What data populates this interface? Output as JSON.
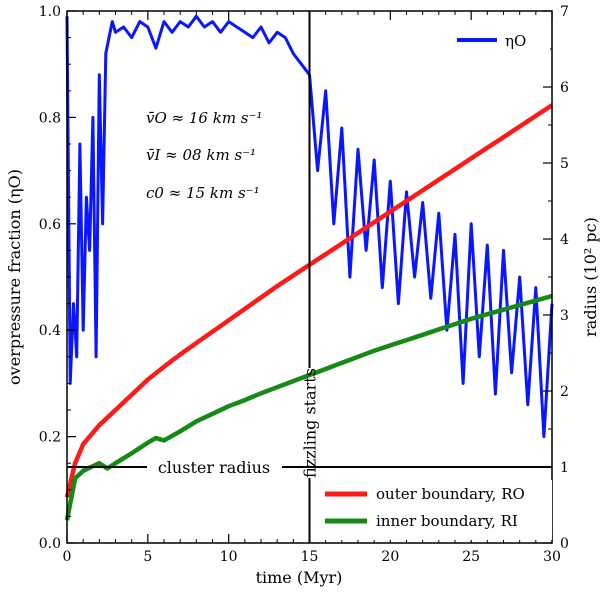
{
  "chart_data": {
    "type": "line",
    "xlabel": "time (Myr)",
    "ylabel_left": "overpressure fraction (ηO)",
    "ylabel_right": "radius (10² pc)",
    "xlim": [
      0,
      30
    ],
    "ylim_left": [
      0,
      1.0
    ],
    "ylim_right": [
      0,
      7
    ],
    "x_ticks": [
      "0",
      "5",
      "10",
      "15",
      "20",
      "25",
      "30"
    ],
    "y_ticks_left": [
      "0.0",
      "0.2",
      "0.4",
      "0.6",
      "0.8",
      "1.0"
    ],
    "y_ticks_right": [
      "0",
      "1",
      "2",
      "3",
      "4",
      "5",
      "6",
      "7"
    ],
    "grid": false,
    "annotations": {
      "v_outer": "v̄O ≈ 16 km s⁻¹",
      "v_inner": "v̄I ≈ 08 km s⁻¹",
      "c0": "c0 ≈ 15 km s⁻¹",
      "cluster_radius": "cluster radius",
      "fizzling": "fizzling starts"
    },
    "reference_lines": {
      "cluster_radius_value": 1.0,
      "fizzling_time": 15
    },
    "legend_top": {
      "position": "top-right",
      "entries": [
        "ηO"
      ]
    },
    "legend_bottom": {
      "position": "bottom-right",
      "entries": [
        "outer boundary, RO",
        "inner boundary, RI"
      ]
    },
    "series": [
      {
        "name": "ηO",
        "axis": "left",
        "color": "#0a16ff",
        "x": [
          0,
          0.2,
          0.4,
          0.6,
          0.8,
          1.0,
          1.2,
          1.4,
          1.6,
          1.8,
          2.0,
          2.2,
          2.4,
          2.6,
          2.8,
          3.0,
          3.5,
          4,
          4.5,
          5,
          5.5,
          6,
          6.5,
          7,
          7.5,
          8,
          8.5,
          9,
          9.5,
          10,
          10.5,
          11,
          11.5,
          12,
          12.5,
          13,
          13.5,
          14,
          14.5,
          15,
          15.5,
          16,
          16.5,
          17,
          17.5,
          18,
          18.5,
          19,
          19.5,
          20,
          20.5,
          21,
          21.5,
          22,
          22.5,
          23,
          23.5,
          24,
          24.5,
          25,
          25.5,
          26,
          26.5,
          27,
          27.5,
          28,
          28.5,
          29,
          29.5,
          30
        ],
        "y": [
          0.99,
          0.3,
          0.45,
          0.35,
          0.75,
          0.4,
          0.65,
          0.55,
          0.8,
          0.35,
          0.88,
          0.6,
          0.92,
          0.95,
          0.98,
          0.96,
          0.97,
          0.95,
          0.98,
          0.97,
          0.93,
          0.98,
          0.96,
          0.98,
          0.97,
          0.99,
          0.97,
          0.98,
          0.96,
          0.98,
          0.97,
          0.96,
          0.95,
          0.97,
          0.94,
          0.96,
          0.95,
          0.92,
          0.9,
          0.88,
          0.7,
          0.85,
          0.6,
          0.78,
          0.5,
          0.74,
          0.55,
          0.72,
          0.48,
          0.68,
          0.45,
          0.66,
          0.5,
          0.64,
          0.46,
          0.62,
          0.4,
          0.58,
          0.3,
          0.6,
          0.35,
          0.56,
          0.28,
          0.55,
          0.32,
          0.5,
          0.26,
          0.48,
          0.2,
          0.45
        ]
      },
      {
        "name": "outer boundary, RO",
        "axis": "right",
        "color": "#ff1a1a",
        "x": [
          0,
          0.5,
          1,
          2,
          3,
          4,
          5,
          6,
          7,
          8,
          9,
          10,
          11,
          12,
          13,
          14,
          15,
          16,
          17,
          18,
          19,
          20,
          21,
          22,
          23,
          24,
          25,
          26,
          27,
          28,
          29,
          30
        ],
        "y": [
          0.6,
          1.05,
          1.3,
          1.55,
          1.75,
          1.95,
          2.15,
          2.32,
          2.48,
          2.63,
          2.78,
          2.93,
          3.08,
          3.23,
          3.38,
          3.52,
          3.66,
          3.8,
          3.94,
          4.08,
          4.22,
          4.36,
          4.5,
          4.64,
          4.78,
          4.92,
          5.06,
          5.2,
          5.34,
          5.48,
          5.62,
          5.76
        ]
      },
      {
        "name": "inner boundary, RI",
        "axis": "right",
        "color": "#158a15",
        "x": [
          0,
          0.5,
          1,
          2,
          2.5,
          3,
          4,
          5,
          5.5,
          6,
          7,
          8,
          9,
          10,
          11,
          12,
          13,
          14,
          15,
          16,
          17,
          18,
          19,
          20,
          21,
          22,
          23,
          24,
          25,
          26,
          27,
          28,
          29,
          30
        ],
        "y": [
          0.3,
          0.85,
          0.95,
          1.05,
          0.98,
          1.05,
          1.18,
          1.32,
          1.38,
          1.35,
          1.47,
          1.6,
          1.7,
          1.8,
          1.88,
          1.97,
          2.05,
          2.13,
          2.21,
          2.29,
          2.37,
          2.45,
          2.53,
          2.6,
          2.67,
          2.74,
          2.81,
          2.88,
          2.95,
          3.01,
          3.07,
          3.13,
          3.19,
          3.25
        ]
      }
    ]
  }
}
